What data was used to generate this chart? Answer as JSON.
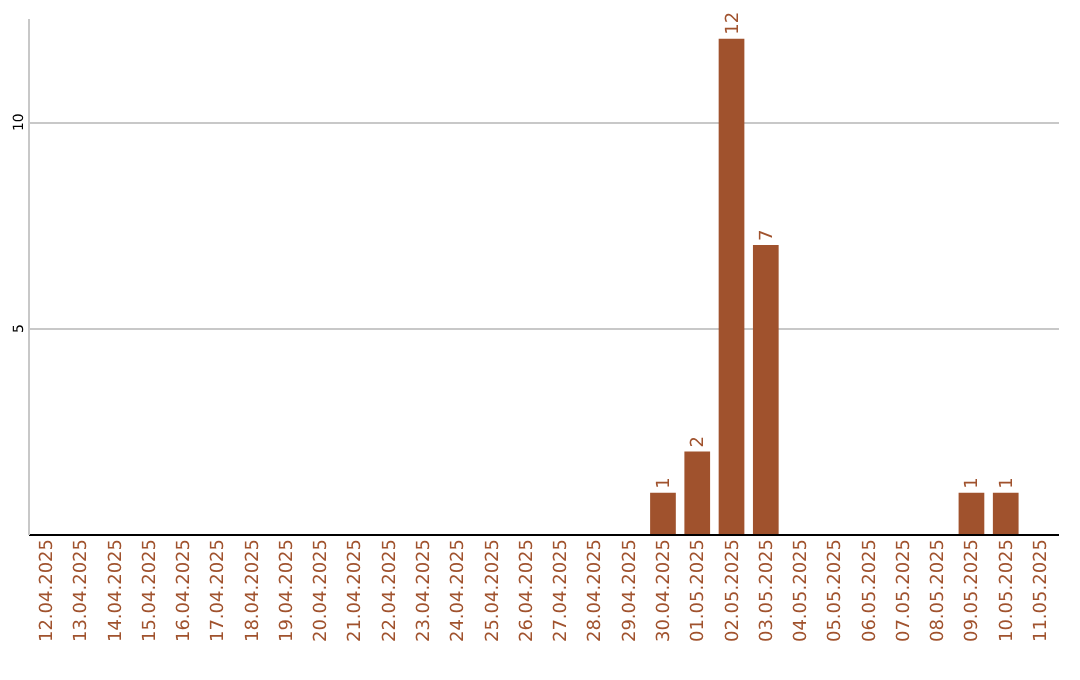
{
  "chart_data": {
    "type": "bar",
    "categories": [
      "12.04.2025",
      "13.04.2025",
      "14.04.2025",
      "15.04.2025",
      "16.04.2025",
      "17.04.2025",
      "18.04.2025",
      "19.04.2025",
      "20.04.2025",
      "21.04.2025",
      "22.04.2025",
      "23.04.2025",
      "24.04.2025",
      "25.04.2025",
      "26.04.2025",
      "27.04.2025",
      "28.04.2025",
      "29.04.2025",
      "30.04.2025",
      "01.05.2025",
      "02.05.2025",
      "03.05.2025",
      "04.05.2025",
      "05.05.2025",
      "06.05.2025",
      "07.05.2025",
      "08.05.2025",
      "09.05.2025",
      "10.05.2025",
      "11.05.2025"
    ],
    "values": [
      0,
      0,
      0,
      0,
      0,
      0,
      0,
      0,
      0,
      0,
      0,
      0,
      0,
      0,
      0,
      0,
      0,
      0,
      1,
      2,
      12,
      7,
      0,
      0,
      0,
      0,
      0,
      1,
      1,
      0
    ],
    "value_labels": [
      null,
      null,
      null,
      null,
      null,
      null,
      null,
      null,
      null,
      null,
      null,
      null,
      null,
      null,
      null,
      null,
      null,
      null,
      "1",
      "2",
      "12",
      "7",
      null,
      null,
      null,
      null,
      null,
      "1",
      "1",
      null
    ],
    "color": "#a0522d",
    "ylim": [
      0,
      12.5
    ],
    "yticks": [
      5,
      10
    ],
    "grid": "y",
    "legend": false
  }
}
